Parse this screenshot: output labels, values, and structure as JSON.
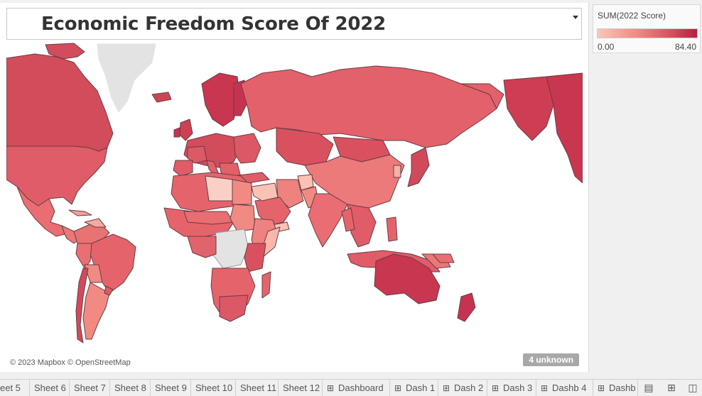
{
  "title": "Economic Freedom Score Of 2022",
  "legend": {
    "title": "SUM(2022 Score)",
    "min": "0.00",
    "max": "84.40"
  },
  "map": {
    "attribution": "© 2023 Mapbox © OpenStreetMap",
    "unknown_badge": "4 unknown",
    "colors": {
      "low": "#fbc6b7",
      "mid": "#e6606a",
      "high": "#b3203e",
      "nodata": "#e3e3e3",
      "border": "#6a3c44"
    }
  },
  "tabs": [
    {
      "label": "eet 5",
      "type": "sheet"
    },
    {
      "label": "Sheet 6",
      "type": "sheet"
    },
    {
      "label": "Sheet 7",
      "type": "sheet"
    },
    {
      "label": "Sheet 8",
      "type": "sheet"
    },
    {
      "label": "Sheet 9",
      "type": "sheet"
    },
    {
      "label": "Sheet 10",
      "type": "sheet"
    },
    {
      "label": "Sheet 11",
      "type": "sheet"
    },
    {
      "label": "Sheet 12",
      "type": "sheet"
    },
    {
      "label": "Dashboard",
      "type": "dashboard"
    },
    {
      "label": "Dash 1",
      "type": "dashboard"
    },
    {
      "label": "Dash 2",
      "type": "dashboard"
    },
    {
      "label": "Dash 3",
      "type": "dashboard"
    },
    {
      "label": "Dashb 4",
      "type": "dashboard"
    },
    {
      "label": "Dashb",
      "type": "dashboard"
    }
  ],
  "tab_tools": [
    "new-worksheet-icon",
    "new-dashboard-icon",
    "new-story-icon"
  ]
}
